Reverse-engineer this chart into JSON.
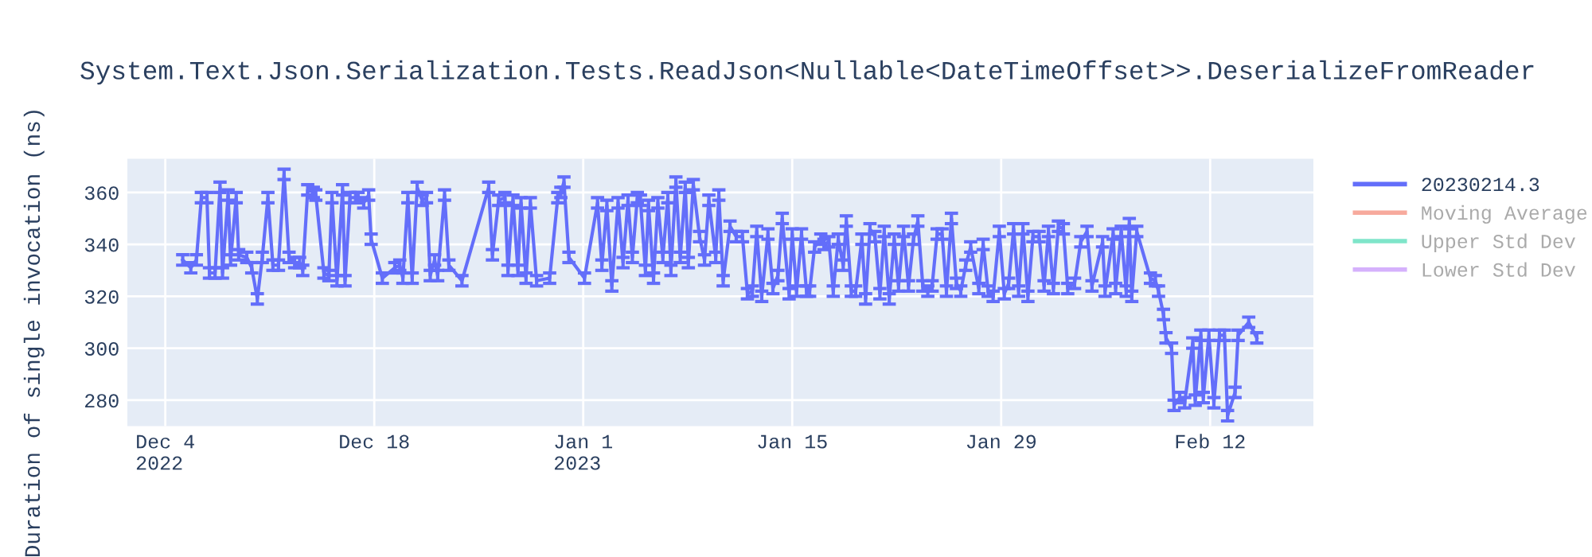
{
  "chart_data": {
    "type": "line",
    "title": "System.Text.Json.Serialization.Tests.ReadJson<Nullable<DateTimeOffset>>.DeserializeFromReader",
    "ylabel": "Duration of single invocation (ns)",
    "xlim": [
      "2022-12-01T11:00",
      "2023-02-18T22:00"
    ],
    "xticks": [
      {
        "value": "2022-12-04",
        "label": "Dec 4\n2022"
      },
      {
        "value": "2022-12-18",
        "label": "Dec 18"
      },
      {
        "value": "2023-01-01",
        "label": "Jan 1\n2023"
      },
      {
        "value": "2023-01-15",
        "label": "Jan 15"
      },
      {
        "value": "2023-01-29",
        "label": "Jan 29"
      },
      {
        "value": "2023-02-12",
        "label": "Feb 12"
      }
    ],
    "ylim": [
      270,
      373
    ],
    "yticks": [
      280,
      300,
      320,
      340,
      360
    ],
    "grid": true,
    "legend": "right",
    "marker": "none",
    "line_style": "solid",
    "series": [
      {
        "name": "20230214.3",
        "color": "#636efa",
        "x": [
          "2022-12-05T04:00",
          "2022-12-05T17:00",
          "2022-12-06T02:00",
          "2022-12-06T10:00",
          "2022-12-06T19:00",
          "2022-12-06T23:00",
          "2022-12-07T08:00",
          "2022-12-07T16:00",
          "2022-12-07T20:00",
          "2022-12-08T05:00",
          "2022-12-08T09:00",
          "2022-12-08T18:00",
          "2022-12-08T22:00",
          "2022-12-09T11:00",
          "2022-12-09T19:00",
          "2022-12-10T04:00",
          "2022-12-10T12:00",
          "2022-12-10T21:00",
          "2022-12-11T05:00",
          "2022-12-11T14:00",
          "2022-12-11T23:00",
          "2022-12-12T07:00",
          "2022-12-12T16:00",
          "2022-12-13T00:00",
          "2022-12-13T05:00",
          "2022-12-13T13:00",
          "2022-12-13T22:00",
          "2022-12-14T02:00",
          "2022-12-14T15:00",
          "2022-12-14T23:00",
          "2022-12-15T04:00",
          "2022-12-15T12:00",
          "2022-12-15T21:00",
          "2022-12-16T01:00",
          "2022-12-16T09:00",
          "2022-12-16T18:00",
          "2022-12-16T22:00",
          "2022-12-17T07:00",
          "2022-12-17T15:00",
          "2022-12-17T19:00",
          "2022-12-18T13:00",
          "2022-12-19T09:00",
          "2022-12-19T17:00",
          "2022-12-19T22:00",
          "2022-12-20T06:00",
          "2022-12-20T13:00",
          "2022-12-20T21:00",
          "2022-12-21T05:00",
          "2022-12-21T12:00",
          "2022-12-21T18:00",
          "2022-12-22T01:00",
          "2022-12-22T06:00",
          "2022-12-22T17:00",
          "2022-12-23T00:00",
          "2022-12-23T21:00",
          "2022-12-25T16:00",
          "2022-12-25T22:00",
          "2022-12-26T08:00",
          "2022-12-26T18:00",
          "2022-12-26T23:00",
          "2022-12-27T07:00",
          "2022-12-27T15:00",
          "2022-12-27T20:00",
          "2022-12-28T04:00",
          "2022-12-28T11:00",
          "2022-12-28T21:00",
          "2022-12-29T18:00",
          "2022-12-30T07:00",
          "2022-12-30T12:00",
          "2022-12-30T17:00",
          "2022-12-31T01:00",
          "2023-01-01T02:00",
          "2023-01-01T23:00",
          "2023-01-02T06:00",
          "2023-01-02T14:00",
          "2023-01-02T22:00",
          "2023-01-03T08:00",
          "2023-01-03T16:00",
          "2023-01-04T00:00",
          "2023-01-04T07:00",
          "2023-01-04T15:00",
          "2023-01-04T20:00",
          "2023-01-05T04:00",
          "2023-01-05T09:00",
          "2023-01-05T17:00",
          "2023-01-06T00:00",
          "2023-01-06T08:00",
          "2023-01-06T16:00",
          "2023-01-06T21:00",
          "2023-01-07T05:00",
          "2023-01-07T12:00",
          "2023-01-07T20:00",
          "2023-01-08T01:00",
          "2023-01-08T09:00",
          "2023-01-08T19:00",
          "2023-01-09T03:00",
          "2023-01-09T10:00",
          "2023-01-09T21:00",
          "2023-01-10T02:00",
          "2023-01-10T09:00",
          "2023-01-10T20:00",
          "2023-01-11T06:00",
          "2023-01-11T16:00",
          "2023-01-12T00:00",
          "2023-01-12T08:00",
          "2023-01-12T15:00",
          "2023-01-12T23:00",
          "2023-01-13T09:00",
          "2023-01-13T17:00",
          "2023-01-14T01:00",
          "2023-01-14T08:00",
          "2023-01-14T19:00",
          "2023-01-15T00:00",
          "2023-01-15T07:00",
          "2023-01-15T15:00",
          "2023-01-15T23:00",
          "2023-01-16T04:00",
          "2023-01-16T12:00",
          "2023-01-16T22:00",
          "2023-01-17T03:00",
          "2023-01-17T11:00",
          "2023-01-17T18:00",
          "2023-01-18T02:00",
          "2023-01-18T10:00",
          "2023-01-18T15:00",
          "2023-01-18T23:00",
          "2023-01-19T06:00",
          "2023-01-19T16:00",
          "2023-01-19T22:00",
          "2023-01-20T05:00",
          "2023-01-20T13:00",
          "2023-01-20T21:00",
          "2023-01-21T04:00",
          "2023-01-21T12:00",
          "2023-01-21T20:00",
          "2023-01-22T03:00",
          "2023-01-22T11:00",
          "2023-01-22T19:00",
          "2023-01-23T03:00",
          "2023-01-23T10:00",
          "2023-01-23T18:00",
          "2023-01-24T02:00",
          "2023-01-24T09:00",
          "2023-01-24T17:00",
          "2023-01-25T01:00",
          "2023-01-25T08:00",
          "2023-01-25T16:00",
          "2023-01-26T00:00",
          "2023-01-26T07:00",
          "2023-01-26T15:00",
          "2023-01-26T23:00",
          "2023-01-27T12:00",
          "2023-01-27T19:00",
          "2023-01-28T03:00",
          "2023-01-28T11:00",
          "2023-01-28T21:00",
          "2023-01-29T05:00",
          "2023-01-29T12:00",
          "2023-01-29T20:00",
          "2023-01-30T04:00",
          "2023-01-30T11:00",
          "2023-01-30T19:00",
          "2023-01-31T03:00",
          "2023-01-31T13:00",
          "2023-01-31T21:00",
          "2023-02-01T04:00",
          "2023-02-01T12:00",
          "2023-02-01T20:00",
          "2023-02-02T04:00",
          "2023-02-02T11:00",
          "2023-02-02T22:00",
          "2023-02-03T08:00",
          "2023-02-03T18:00",
          "2023-02-04T02:00",
          "2023-02-04T19:00",
          "2023-02-04T23:00",
          "2023-02-05T12:00",
          "2023-02-05T16:00",
          "2023-02-06T01:00",
          "2023-02-06T09:00",
          "2023-02-06T14:00",
          "2023-02-06T18:00",
          "2023-02-07T02:00",
          "2023-02-08T00:00",
          "2023-02-08T08:00",
          "2023-02-08T13:00",
          "2023-02-08T21:00",
          "2023-02-09T01:00",
          "2023-02-09T10:00",
          "2023-02-09T14:00",
          "2023-02-09T23:00",
          "2023-02-10T07:00",
          "2023-02-10T20:00",
          "2023-02-11T00:00",
          "2023-02-11T09:00",
          "2023-02-11T13:00",
          "2023-02-11T22:00",
          "2023-02-12T06:00",
          "2023-02-12T15:00",
          "2023-02-12T23:00",
          "2023-02-13T04:00",
          "2023-02-13T16:00",
          "2023-02-13T21:00",
          "2023-02-14T14:00",
          "2023-02-15T03:00"
        ],
        "values": [
          334,
          331,
          334,
          358,
          358,
          329,
          329,
          362,
          329,
          359,
          334,
          358,
          336,
          335,
          331,
          319,
          335,
          358,
          332,
          332,
          367,
          335,
          333,
          333,
          330,
          361,
          360,
          359,
          329,
          328,
          358,
          326,
          361,
          326,
          358,
          358,
          358,
          356,
          359,
          342,
          327,
          331,
          332,
          327,
          358,
          327,
          362,
          357,
          358,
          328,
          334,
          328,
          359,
          332,
          326,
          362,
          336,
          357,
          358,
          330,
          357,
          330,
          356,
          327,
          356,
          326,
          327,
          358,
          360,
          364,
          335,
          327,
          356,
          332,
          355,
          324,
          356,
          333,
          357,
          335,
          358,
          357,
          330,
          355,
          327,
          356,
          335,
          358,
          330,
          364,
          335,
          362,
          333,
          363,
          343,
          334,
          357,
          335,
          359,
          326,
          347,
          343,
          343,
          321,
          322,
          345,
          320,
          344,
          323,
          328,
          350,
          321,
          344,
          322,
          344,
          322,
          322,
          339,
          342,
          340,
          341,
          322,
          342,
          332,
          349,
          322,
          322,
          342,
          319,
          346,
          343,
          321,
          345,
          319,
          342,
          324,
          345,
          324,
          342,
          349,
          324,
          322,
          324,
          344,
          344,
          322,
          350,
          325,
          322,
          332,
          339,
          323,
          340,
          322,
          320,
          345,
          321,
          325,
          346,
          322,
          346,
          320,
          343,
          343,
          324,
          345,
          323,
          347,
          346,
          323,
          325,
          341,
          345,
          324,
          341,
          322,
          344,
          323,
          345,
          322,
          348,
          320,
          345,
          327,
          326,
          322,
          313,
          304,
          300,
          278,
          281,
          279,
          302,
          280,
          305,
          281,
          305,
          279,
          305,
          305,
          274,
          283,
          305,
          310,
          304
        ],
        "errors": [
          2,
          2,
          2,
          2,
          2,
          2,
          2,
          2,
          2,
          2,
          2,
          2,
          2,
          2,
          2,
          2,
          2,
          2,
          2,
          2,
          2,
          2,
          2,
          2,
          2,
          2,
          2,
          2,
          2,
          2,
          2,
          2,
          2,
          2,
          2,
          2,
          2,
          2,
          2,
          2,
          2,
          2,
          2,
          2,
          2,
          2,
          2,
          2,
          2,
          2,
          2,
          2,
          2,
          2,
          2,
          2,
          2,
          2,
          2,
          2,
          2,
          2,
          2,
          2,
          2,
          2,
          2,
          2,
          2,
          2,
          2,
          2,
          2,
          2,
          2,
          2,
          2,
          2,
          2,
          2,
          2,
          2,
          2,
          2,
          2,
          2,
          2,
          2,
          2,
          2,
          2,
          2,
          2,
          2,
          2,
          2,
          2,
          2,
          2,
          2,
          2,
          2,
          2,
          2,
          2,
          2,
          2,
          2,
          2,
          2,
          2,
          2,
          2,
          2,
          2,
          2,
          2,
          2,
          2,
          2,
          2,
          2,
          2,
          2,
          2,
          2,
          2,
          2,
          2,
          2,
          2,
          2,
          2,
          2,
          2,
          2,
          2,
          2,
          2,
          2,
          2,
          2,
          2,
          2,
          2,
          2,
          2,
          2,
          2,
          2,
          2,
          2,
          2,
          2,
          2,
          2,
          2,
          2,
          2,
          2,
          2,
          2,
          2,
          2,
          2,
          2,
          2,
          2,
          2,
          2,
          2,
          2,
          2,
          2,
          2,
          2,
          2,
          2,
          2,
          2,
          2,
          2,
          2,
          2,
          2,
          2,
          2,
          2,
          2,
          2,
          2,
          2,
          2,
          2,
          2,
          2,
          2,
          2,
          2,
          2,
          2,
          2,
          2,
          2,
          2
        ]
      },
      {
        "name": "Moving Average",
        "color": "#ef553b"
      },
      {
        "name": "Upper Std Dev",
        "color": "#00cc96"
      },
      {
        "name": "Lower Std Dev",
        "color": "#ab63fa"
      }
    ]
  }
}
